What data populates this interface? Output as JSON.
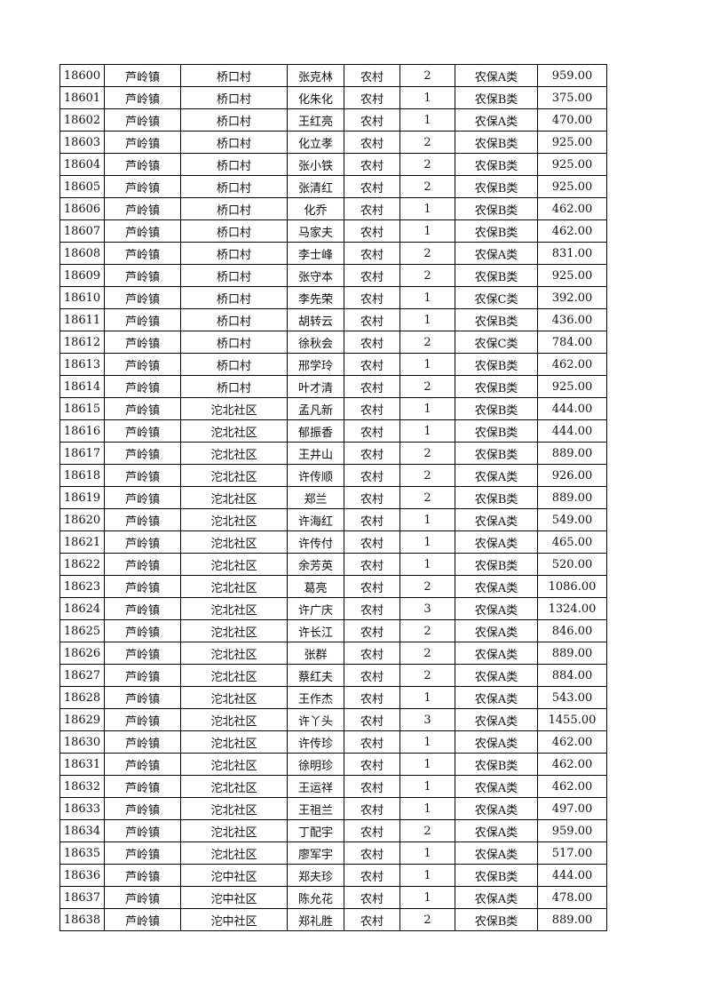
{
  "table": {
    "rows": [
      [
        "18600",
        "芦岭镇",
        "桥口村",
        "张克林",
        "农村",
        "2",
        "农保A类",
        "959.00"
      ],
      [
        "18601",
        "芦岭镇",
        "桥口村",
        "化朱化",
        "农村",
        "1",
        "农保B类",
        "375.00"
      ],
      [
        "18602",
        "芦岭镇",
        "桥口村",
        "王红亮",
        "农村",
        "1",
        "农保A类",
        "470.00"
      ],
      [
        "18603",
        "芦岭镇",
        "桥口村",
        "化立孝",
        "农村",
        "2",
        "农保B类",
        "925.00"
      ],
      [
        "18604",
        "芦岭镇",
        "桥口村",
        "张小铁",
        "农村",
        "2",
        "农保B类",
        "925.00"
      ],
      [
        "18605",
        "芦岭镇",
        "桥口村",
        "张清红",
        "农村",
        "2",
        "农保B类",
        "925.00"
      ],
      [
        "18606",
        "芦岭镇",
        "桥口村",
        "化乔",
        "农村",
        "1",
        "农保B类",
        "462.00"
      ],
      [
        "18607",
        "芦岭镇",
        "桥口村",
        "马家夫",
        "农村",
        "1",
        "农保B类",
        "462.00"
      ],
      [
        "18608",
        "芦岭镇",
        "桥口村",
        "李士峰",
        "农村",
        "2",
        "农保A类",
        "831.00"
      ],
      [
        "18609",
        "芦岭镇",
        "桥口村",
        "张守本",
        "农村",
        "2",
        "农保B类",
        "925.00"
      ],
      [
        "18610",
        "芦岭镇",
        "桥口村",
        "李先荣",
        "农村",
        "1",
        "农保C类",
        "392.00"
      ],
      [
        "18611",
        "芦岭镇",
        "桥口村",
        "胡转云",
        "农村",
        "1",
        "农保B类",
        "436.00"
      ],
      [
        "18612",
        "芦岭镇",
        "桥口村",
        "徐秋会",
        "农村",
        "2",
        "农保C类",
        "784.00"
      ],
      [
        "18613",
        "芦岭镇",
        "桥口村",
        "邢学玲",
        "农村",
        "1",
        "农保B类",
        "462.00"
      ],
      [
        "18614",
        "芦岭镇",
        "桥口村",
        "叶才清",
        "农村",
        "2",
        "农保B类",
        "925.00"
      ],
      [
        "18615",
        "芦岭镇",
        "沱北社区",
        "孟凡新",
        "农村",
        "1",
        "农保B类",
        "444.00"
      ],
      [
        "18616",
        "芦岭镇",
        "沱北社区",
        "郁振香",
        "农村",
        "1",
        "农保B类",
        "444.00"
      ],
      [
        "18617",
        "芦岭镇",
        "沱北社区",
        "王井山",
        "农村",
        "2",
        "农保B类",
        "889.00"
      ],
      [
        "18618",
        "芦岭镇",
        "沱北社区",
        "许传顺",
        "农村",
        "2",
        "农保A类",
        "926.00"
      ],
      [
        "18619",
        "芦岭镇",
        "沱北社区",
        "郑兰",
        "农村",
        "2",
        "农保B类",
        "889.00"
      ],
      [
        "18620",
        "芦岭镇",
        "沱北社区",
        "许海红",
        "农村",
        "1",
        "农保A类",
        "549.00"
      ],
      [
        "18621",
        "芦岭镇",
        "沱北社区",
        "许传付",
        "农村",
        "1",
        "农保A类",
        "465.00"
      ],
      [
        "18622",
        "芦岭镇",
        "沱北社区",
        "余芳英",
        "农村",
        "1",
        "农保B类",
        "520.00"
      ],
      [
        "18623",
        "芦岭镇",
        "沱北社区",
        "葛亮",
        "农村",
        "2",
        "农保A类",
        "1086.00"
      ],
      [
        "18624",
        "芦岭镇",
        "沱北社区",
        "许广庆",
        "农村",
        "3",
        "农保A类",
        "1324.00"
      ],
      [
        "18625",
        "芦岭镇",
        "沱北社区",
        "许长江",
        "农村",
        "2",
        "农保A类",
        "846.00"
      ],
      [
        "18626",
        "芦岭镇",
        "沱北社区",
        "张群",
        "农村",
        "2",
        "农保A类",
        "889.00"
      ],
      [
        "18627",
        "芦岭镇",
        "沱北社区",
        "蔡红夫",
        "农村",
        "2",
        "农保A类",
        "884.00"
      ],
      [
        "18628",
        "芦岭镇",
        "沱北社区",
        "王作杰",
        "农村",
        "1",
        "农保A类",
        "543.00"
      ],
      [
        "18629",
        "芦岭镇",
        "沱北社区",
        "许丫头",
        "农村",
        "3",
        "农保A类",
        "1455.00"
      ],
      [
        "18630",
        "芦岭镇",
        "沱北社区",
        "许传珍",
        "农村",
        "1",
        "农保A类",
        "462.00"
      ],
      [
        "18631",
        "芦岭镇",
        "沱北社区",
        "徐明珍",
        "农村",
        "1",
        "农保B类",
        "462.00"
      ],
      [
        "18632",
        "芦岭镇",
        "沱北社区",
        "王运祥",
        "农村",
        "1",
        "农保A类",
        "462.00"
      ],
      [
        "18633",
        "芦岭镇",
        "沱北社区",
        "王祖兰",
        "农村",
        "1",
        "农保A类",
        "497.00"
      ],
      [
        "18634",
        "芦岭镇",
        "沱北社区",
        "丁配宇",
        "农村",
        "2",
        "农保A类",
        "959.00"
      ],
      [
        "18635",
        "芦岭镇",
        "沱北社区",
        "廖军宇",
        "农村",
        "1",
        "农保A类",
        "517.00"
      ],
      [
        "18636",
        "芦岭镇",
        "沱中社区",
        "郑夫珍",
        "农村",
        "1",
        "农保B类",
        "444.00"
      ],
      [
        "18637",
        "芦岭镇",
        "沱中社区",
        "陈允花",
        "农村",
        "1",
        "农保A类",
        "478.00"
      ],
      [
        "18638",
        "芦岭镇",
        "沱中社区",
        "郑礼胜",
        "农村",
        "2",
        "农保B类",
        "889.00"
      ]
    ]
  }
}
